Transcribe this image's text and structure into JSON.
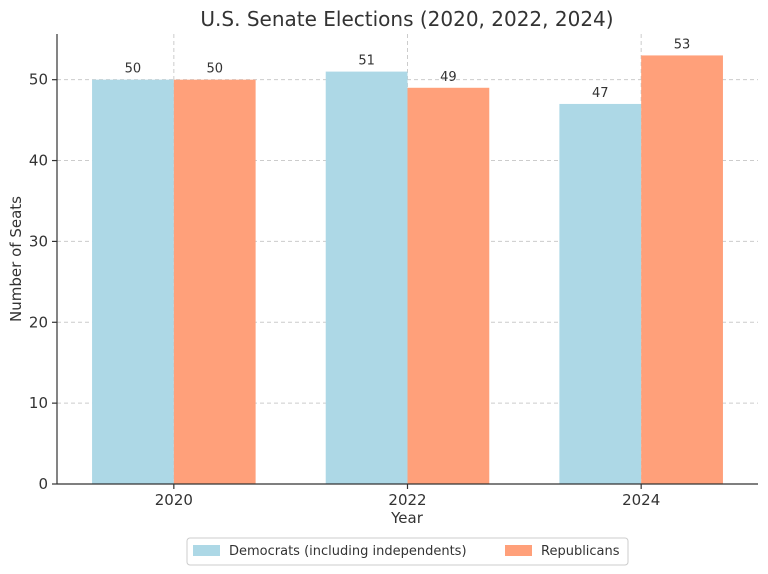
{
  "chart_data": {
    "type": "bar",
    "title": "U.S. Senate Elections (2020, 2022, 2024)",
    "xlabel": "Year",
    "ylabel": "Number of Seats",
    "categories": [
      "2020",
      "2022",
      "2024"
    ],
    "series": [
      {
        "name": "Democrats (including independents)",
        "values": [
          50,
          51,
          47
        ],
        "color": "#add8e6"
      },
      {
        "name": "Republicans",
        "values": [
          50,
          49,
          53
        ],
        "color": "#ffa07a"
      }
    ],
    "ylim": [
      0,
      55.65
    ],
    "yticks": [
      0,
      10,
      20,
      30,
      40,
      50
    ],
    "grid": true,
    "legend": "bottom-center"
  }
}
